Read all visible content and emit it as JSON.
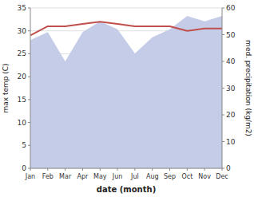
{
  "chart_data": {
    "type": "line",
    "categories": [
      "Jan",
      "Feb",
      "Mar",
      "Apr",
      "May",
      "Jun",
      "Jul",
      "Aug",
      "Sep",
      "Oct",
      "Nov",
      "Dec"
    ],
    "series": [
      {
        "type": "area",
        "axis": "y2",
        "color": "#c5cce8",
        "values": [
          48,
          51,
          40,
          51,
          55,
          52,
          43,
          49,
          52,
          57,
          55,
          57
        ]
      },
      {
        "type": "line",
        "color": "#c0504d",
        "values": [
          29.0,
          31.0,
          31.0,
          31.5,
          32.0,
          31.5,
          31.0,
          31.0,
          31.0,
          30.0,
          30.5,
          30.5
        ]
      }
    ],
    "xlabel": "date (month)",
    "ylabel": "max temp (C)",
    "y2label": "med. precipitation (kg/m2)",
    "ylim": [
      0,
      35
    ],
    "yticks": [
      0,
      5,
      10,
      15,
      20,
      25,
      30,
      35
    ],
    "y2lim": [
      0,
      60
    ],
    "y2ticks": [
      0,
      10,
      20,
      30,
      40,
      50,
      60
    ],
    "grid": true
  }
}
